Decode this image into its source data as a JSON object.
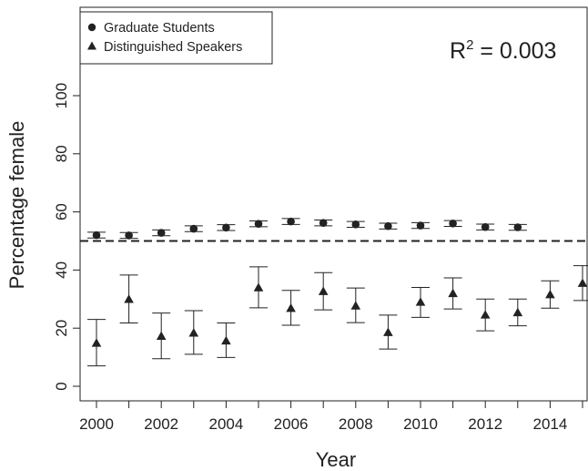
{
  "chart_data": {
    "type": "scatter",
    "xlabel": "Year",
    "ylabel": "Percentage female",
    "xlim": [
      2000,
      2015
    ],
    "ylim": [
      0,
      100
    ],
    "xticks": [
      2000,
      2002,
      2004,
      2006,
      2008,
      2010,
      2012,
      2014
    ],
    "yticks": [
      0,
      20,
      40,
      60,
      80,
      100
    ],
    "reference_line": {
      "y": 50,
      "style": "dashed"
    },
    "annotation": {
      "base": "R",
      "sup": "2",
      "rest": " = 0.003"
    },
    "legend_position": "top-left",
    "series": [
      {
        "name": "Graduate Students",
        "marker": "circle",
        "x": [
          2000,
          2001,
          2002,
          2003,
          2004,
          2005,
          2006,
          2007,
          2008,
          2009,
          2010,
          2011,
          2012,
          2013
        ],
        "y": [
          52.0,
          51.9,
          52.8,
          54.2,
          54.6,
          55.9,
          56.7,
          56.2,
          55.7,
          55.1,
          55.3,
          56.0,
          54.8,
          54.7
        ],
        "lower": [
          51.0,
          50.9,
          51.8,
          53.2,
          53.6,
          54.9,
          55.7,
          55.2,
          54.7,
          54.1,
          54.3,
          55.0,
          53.8,
          53.7
        ],
        "upper": [
          53.0,
          52.9,
          53.8,
          55.2,
          55.6,
          56.9,
          57.7,
          57.2,
          56.7,
          56.1,
          56.3,
          57.0,
          55.8,
          55.7
        ]
      },
      {
        "name": "Distinguished Speakers",
        "marker": "triangle",
        "x": [
          2000,
          2001,
          2002,
          2003,
          2004,
          2005,
          2006,
          2007,
          2008,
          2009,
          2010,
          2011,
          2012,
          2013,
          2014,
          2015
        ],
        "y": [
          14.9,
          30.0,
          17.3,
          18.4,
          15.7,
          34.0,
          26.9,
          32.7,
          27.7,
          18.6,
          29.0,
          32.0,
          24.6,
          25.4,
          31.6,
          35.5
        ],
        "lower": [
          7.0,
          21.8,
          9.5,
          11.0,
          9.9,
          27.0,
          21.0,
          26.3,
          21.9,
          12.8,
          23.7,
          26.6,
          19.1,
          20.8,
          26.9,
          29.5
        ],
        "upper": [
          23.0,
          38.3,
          25.2,
          26.0,
          21.8,
          41.1,
          33.0,
          39.1,
          33.8,
          24.5,
          34.0,
          37.3,
          30.0,
          30.0,
          36.3,
          41.5
        ]
      }
    ]
  }
}
